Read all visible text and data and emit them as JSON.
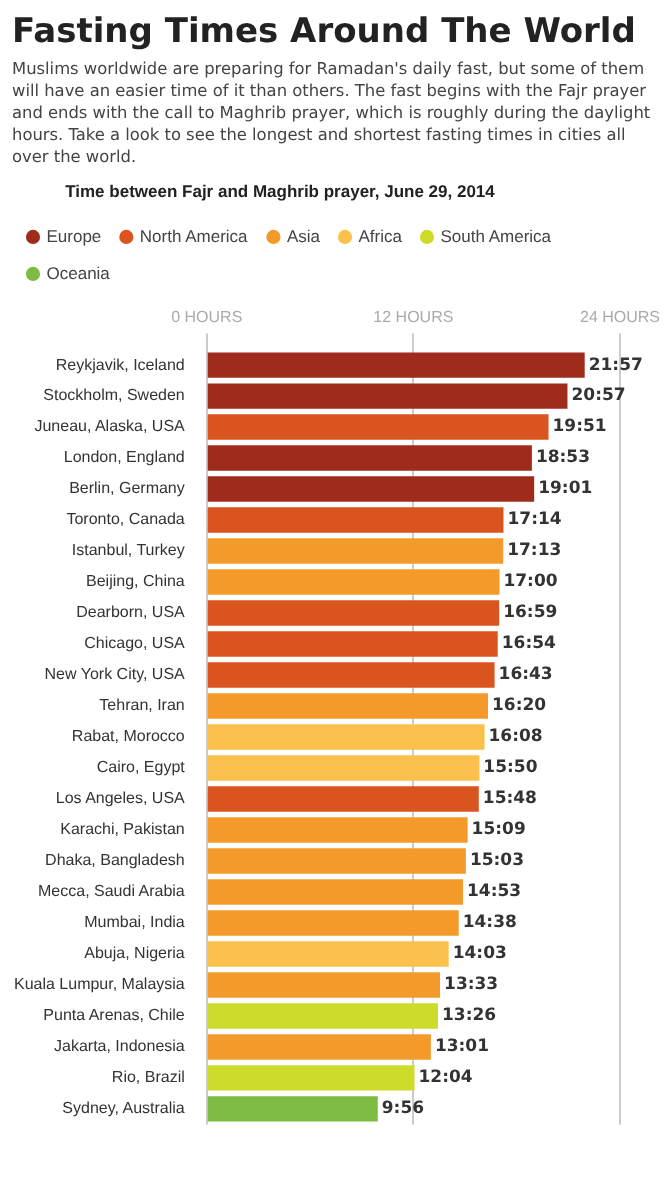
{
  "chart_data": {
    "type": "bar",
    "orientation": "horizontal",
    "stacked": true,
    "title": "Fasting Times Around The World",
    "subtitle": "Muslims worldwide are preparing for Ramadan's daily fast, but some of them will have an easier time of it than others. The fast begins with the Fajr prayer and ends with the call to Maghrib prayer, which is roughly during the daylight hours. Take a look to see the longest and shortest fasting times in cities all over the world.",
    "legend_title": "Time between Fajr and Maghrib prayer, June 29, 2014",
    "categories": [
      "Reykjavik, Iceland",
      "Stockholm, Sweden",
      "Juneau, Alaska, USA",
      "London, England",
      "Berlin, Germany",
      "Toronto, Canada",
      "Istanbul, Turkey",
      "Beijing, China",
      "Dearborn, USA",
      "Chicago, USA",
      "New York City, USA",
      "Tehran, Iran",
      "Rabat, Morocco",
      "Cairo, Egypt",
      "Los Angeles, USA",
      "Karachi, Pakistan",
      "Dhaka, Bangladesh",
      "Mecca, Saudi Arabia",
      "Mumbai, India",
      "Abuja, Nigeria",
      "Kuala Lumpur, Malaysia",
      "Punta Arenas, Chile",
      "Jakarta, Indonesia",
      "Rio, Brazil",
      "Sydney, Australia"
    ],
    "series": [
      {
        "name": "Europe",
        "color": "#9e2b1b",
        "values": [
          21.95,
          20.95,
          null,
          18.883,
          19.017,
          null,
          null,
          null,
          null,
          null,
          null,
          null,
          null,
          null,
          null,
          null,
          null,
          null,
          null,
          null,
          null,
          null,
          null,
          null,
          null
        ],
        "value_labels": [
          "21:57",
          "20:57",
          null,
          "18:53",
          "19:01",
          null,
          null,
          null,
          null,
          null,
          null,
          null,
          null,
          null,
          null,
          null,
          null,
          null,
          null,
          null,
          null,
          null,
          null,
          null,
          null
        ]
      },
      {
        "name": "North America",
        "color": "#d9541e",
        "values": [
          null,
          null,
          19.85,
          null,
          null,
          17.233,
          null,
          null,
          16.983,
          16.9,
          16.717,
          null,
          null,
          null,
          15.8,
          null,
          null,
          null,
          null,
          null,
          null,
          null,
          null,
          null,
          null
        ],
        "value_labels": [
          null,
          null,
          "19:51",
          null,
          null,
          "17:14",
          null,
          null,
          "16:59",
          "16:54",
          "16:43",
          null,
          null,
          null,
          "15:48",
          null,
          null,
          null,
          null,
          null,
          null,
          null,
          null,
          null,
          null
        ]
      },
      {
        "name": "Asia",
        "color": "#f39a2b",
        "values": [
          null,
          null,
          null,
          null,
          null,
          null,
          17.217,
          17,
          null,
          null,
          null,
          16.333,
          null,
          null,
          null,
          15.15,
          15.05,
          14.883,
          14.633,
          null,
          13.55,
          null,
          13.017,
          null,
          null
        ],
        "value_labels": [
          null,
          null,
          null,
          null,
          null,
          null,
          "17:13",
          "17:00",
          null,
          null,
          null,
          "16:20",
          null,
          null,
          null,
          "15:09",
          "15:03",
          "14:53",
          "14:38",
          null,
          "13:33",
          null,
          "13:01",
          null,
          null
        ]
      },
      {
        "name": "Africa",
        "color": "#fbc14c",
        "values": [
          null,
          null,
          null,
          null,
          null,
          null,
          null,
          null,
          null,
          null,
          null,
          null,
          16.133,
          15.833,
          null,
          null,
          null,
          null,
          null,
          14.05,
          null,
          null,
          null,
          null,
          null
        ],
        "value_labels": [
          null,
          null,
          null,
          null,
          null,
          null,
          null,
          null,
          null,
          null,
          null,
          null,
          "16:08",
          "15:50",
          null,
          null,
          null,
          null,
          null,
          "14:03",
          null,
          null,
          null,
          null,
          null
        ]
      },
      {
        "name": "South America",
        "color": "#cddc2a",
        "values": [
          null,
          null,
          null,
          null,
          null,
          null,
          null,
          null,
          null,
          null,
          null,
          null,
          null,
          null,
          null,
          null,
          null,
          null,
          null,
          null,
          null,
          13.433,
          null,
          12.067,
          null
        ],
        "value_labels": [
          null,
          null,
          null,
          null,
          null,
          null,
          null,
          null,
          null,
          null,
          null,
          null,
          null,
          null,
          null,
          null,
          null,
          null,
          null,
          null,
          null,
          "13:26",
          null,
          "12:04",
          null
        ]
      },
      {
        "name": "Oceania",
        "color": "#7dbb42",
        "values": [
          null,
          null,
          null,
          null,
          null,
          null,
          null,
          null,
          null,
          null,
          null,
          null,
          null,
          null,
          null,
          null,
          null,
          null,
          null,
          null,
          null,
          null,
          null,
          null,
          9.933
        ],
        "value_labels": [
          null,
          null,
          null,
          null,
          null,
          null,
          null,
          null,
          null,
          null,
          null,
          null,
          null,
          null,
          null,
          null,
          null,
          null,
          null,
          null,
          null,
          null,
          null,
          null,
          "9:56"
        ]
      }
    ],
    "xlim": [
      0,
      24
    ],
    "xticks": [
      {
        "value": 0,
        "label": "0 HOURS"
      },
      {
        "value": 12,
        "label": "12 HOURS"
      },
      {
        "value": 24,
        "label": "24 HOURS"
      }
    ],
    "grid": "x",
    "legend": "top left"
  }
}
